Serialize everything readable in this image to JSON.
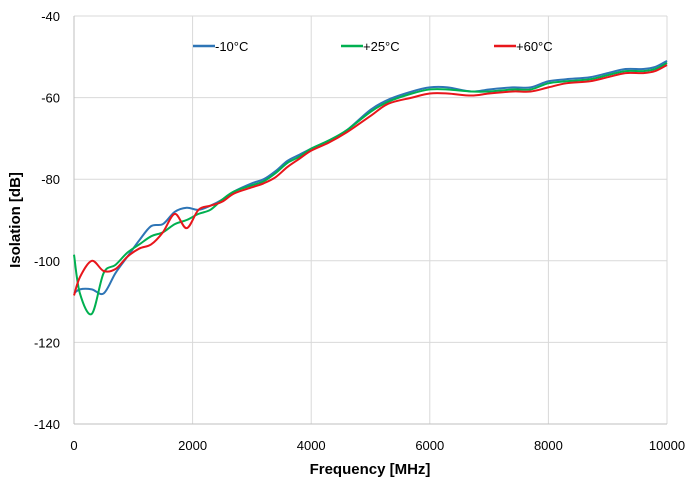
{
  "chart_data": {
    "type": "line",
    "title": "",
    "xlabel": "Frequency [MHz]",
    "ylabel": "Isolation [dB]",
    "xlim": [
      0,
      10000
    ],
    "ylim": [
      -140,
      -40
    ],
    "x_ticks": [
      0,
      2000,
      4000,
      6000,
      8000,
      10000
    ],
    "y_ticks": [
      -140,
      -120,
      -100,
      -80,
      -60,
      -40
    ],
    "grid": true,
    "legend_position": "top",
    "series": [
      {
        "name": "-10°C",
        "color": "#2e75b6",
        "x": [
          0,
          100,
          300,
          500,
          700,
          900,
          1100,
          1300,
          1500,
          1700,
          1900,
          2100,
          2300,
          2500,
          2700,
          3000,
          3200,
          3400,
          3600,
          3800,
          4000,
          4300,
          4600,
          5000,
          5300,
          5700,
          6000,
          6300,
          6700,
          7000,
          7400,
          7700,
          8000,
          8300,
          8700,
          9000,
          9300,
          9600,
          9800,
          10000
        ],
        "y": [
          -108,
          -107,
          -107,
          -108,
          -103,
          -99,
          -95,
          -91.5,
          -91,
          -88,
          -87,
          -87.5,
          -86.5,
          -85,
          -83,
          -81,
          -80,
          -78,
          -75.5,
          -74,
          -72.5,
          -70.5,
          -68,
          -63,
          -60.5,
          -58.5,
          -57.5,
          -57.5,
          -58.5,
          -58,
          -57.5,
          -57.5,
          -56,
          -55.5,
          -55,
          -54,
          -53,
          -53,
          -52.5,
          -51
        ]
      },
      {
        "name": "+25°C",
        "color": "#00b050",
        "x": [
          0,
          100,
          300,
          500,
          700,
          900,
          1100,
          1300,
          1500,
          1700,
          1900,
          2100,
          2300,
          2500,
          2700,
          3000,
          3200,
          3400,
          3600,
          3800,
          4000,
          4300,
          4600,
          5000,
          5300,
          5700,
          6000,
          6300,
          6700,
          7000,
          7400,
          7700,
          8000,
          8300,
          8700,
          9000,
          9300,
          9600,
          9800,
          10000
        ],
        "y": [
          -98.5,
          -108,
          -113,
          -103,
          -101,
          -98,
          -96,
          -94,
          -93,
          -91,
          -90,
          -88.5,
          -87.5,
          -85,
          -83,
          -81.5,
          -80.5,
          -78.5,
          -76,
          -74.5,
          -72.5,
          -70.5,
          -68,
          -63.5,
          -61,
          -59,
          -58,
          -58,
          -58.5,
          -58.5,
          -58,
          -58,
          -56.5,
          -56,
          -55.5,
          -54.5,
          -53.5,
          -53.5,
          -53,
          -51.5
        ]
      },
      {
        "name": "+60°C",
        "color": "#e8161b",
        "x": [
          0,
          100,
          300,
          500,
          700,
          900,
          1100,
          1300,
          1500,
          1700,
          1900,
          2100,
          2300,
          2500,
          2700,
          3000,
          3200,
          3400,
          3600,
          3800,
          4000,
          4300,
          4600,
          5000,
          5300,
          5700,
          6000,
          6300,
          6700,
          7000,
          7400,
          7700,
          8000,
          8300,
          8700,
          9000,
          9300,
          9600,
          9800,
          10000
        ],
        "y": [
          -108.5,
          -104,
          -100,
          -102.5,
          -102,
          -99,
          -97,
          -96,
          -93,
          -88.5,
          -92,
          -87.5,
          -86.5,
          -85.5,
          -83.5,
          -82,
          -81,
          -79.5,
          -77,
          -75,
          -73,
          -71,
          -68.5,
          -64.5,
          -61.5,
          -60,
          -59,
          -59,
          -59.5,
          -59,
          -58.5,
          -58.5,
          -57.5,
          -56.5,
          -56,
          -55,
          -54,
          -54,
          -53.5,
          -52
        ]
      }
    ]
  }
}
